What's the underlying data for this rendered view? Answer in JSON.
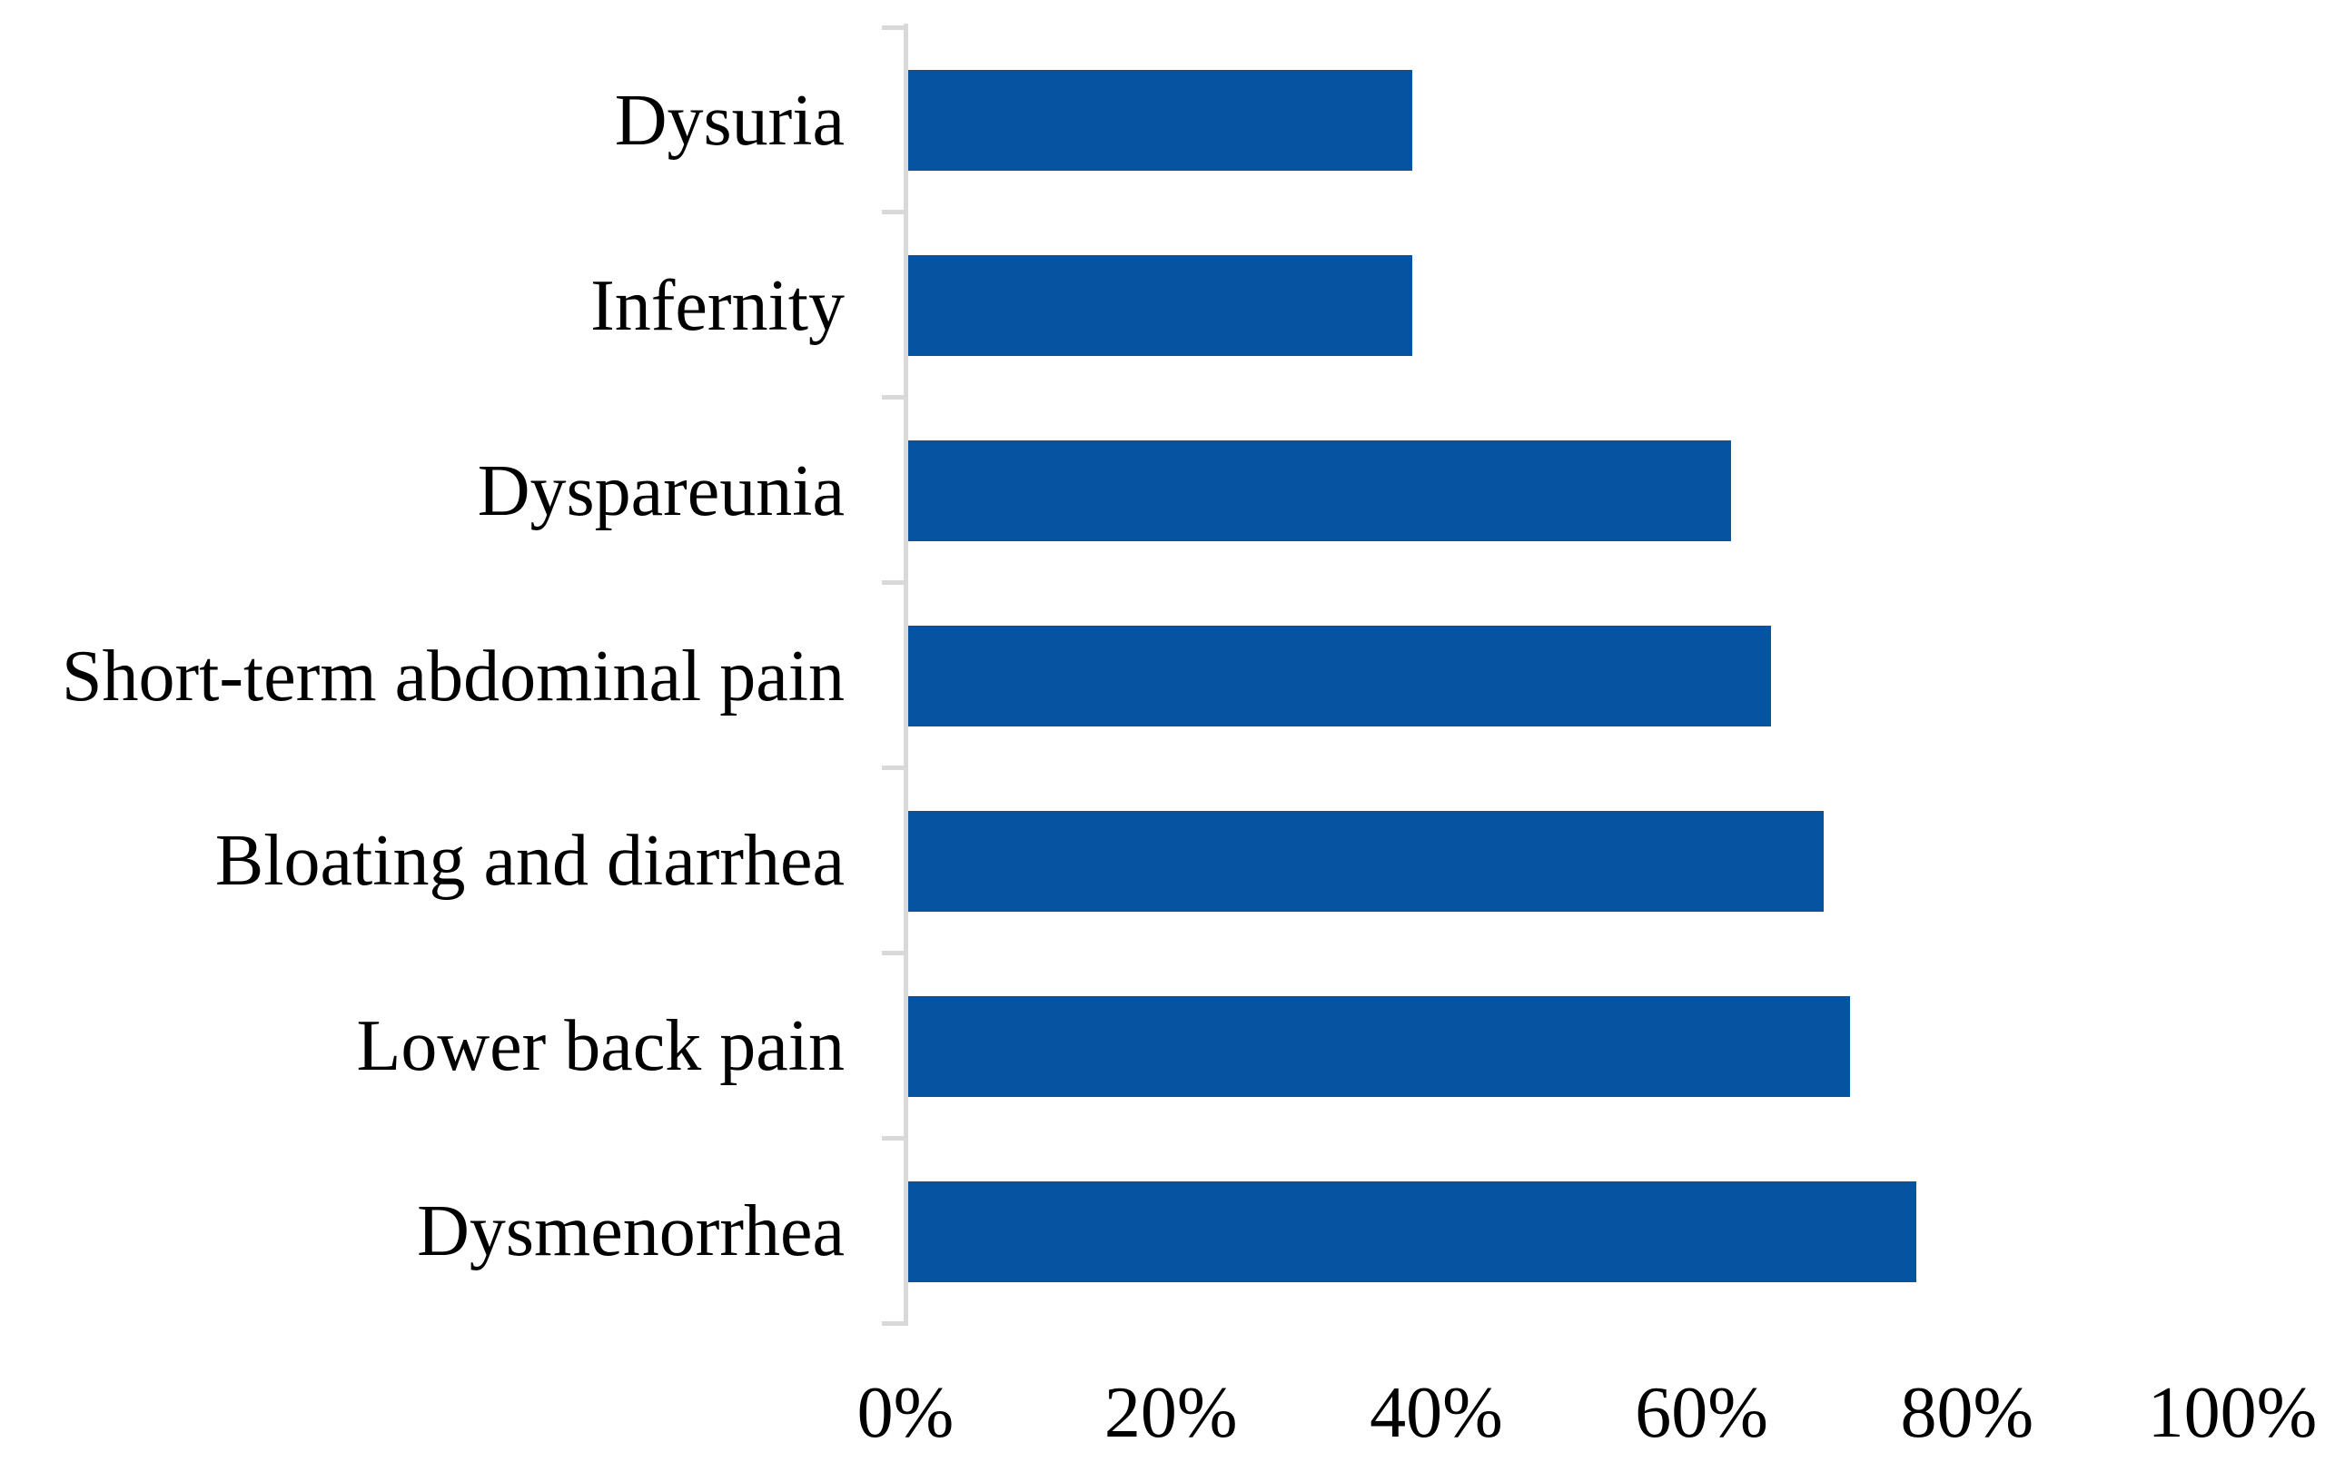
{
  "chart_data": {
    "type": "bar",
    "orientation": "horizontal",
    "title": "",
    "xlabel": "",
    "ylabel": "",
    "categories": [
      "Dysuria",
      "Infernity",
      "Dyspareunia",
      "Short-term abdominal pain",
      "Bloating and diarrhea",
      "Lower back pain",
      "Dysmenorrhea"
    ],
    "values": [
      38,
      38,
      62,
      65,
      69,
      71,
      76
    ],
    "unit": "%",
    "xlim": [
      0,
      100
    ],
    "x_ticks": [
      "0%",
      "20%",
      "40%",
      "60%",
      "80%",
      "100%"
    ],
    "x_tick_values": [
      0,
      20,
      40,
      60,
      80,
      100
    ],
    "grid": false,
    "legend": "none",
    "bar_color": "#0553A1",
    "axis_color": "#D9D9D9",
    "text_color": "#000000",
    "background_color": "#FFFFFF"
  }
}
